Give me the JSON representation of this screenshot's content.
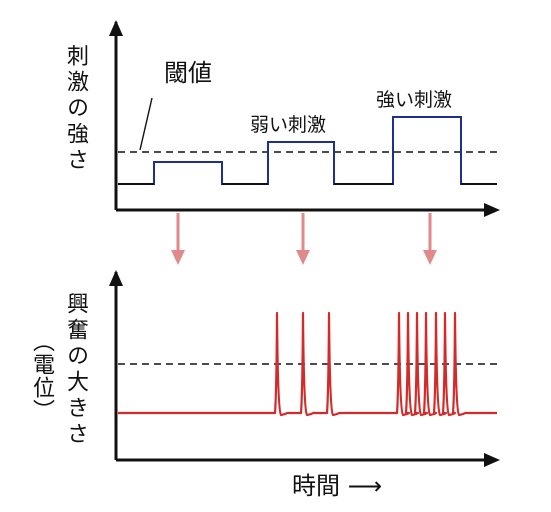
{
  "top_panel": {
    "ylabel": "刺激の強さ",
    "threshold_label": "閾値",
    "weak_label": "弱い刺激",
    "strong_label": "強い刺激"
  },
  "bottom_panel": {
    "ylabel_main": "興奮の大きさ",
    "ylabel_sub": "（電位）",
    "xlabel": "時間 ⟶"
  },
  "colors": {
    "stimulus": "#1f2f8f",
    "response": "#d42a2a",
    "arrow": "#e08a8a",
    "axis": "#111111"
  },
  "stimuli": [
    {
      "name": "below-threshold",
      "level": "below",
      "spikes": 0
    },
    {
      "name": "weak",
      "level": "weak",
      "spikes": 3
    },
    {
      "name": "strong",
      "level": "strong",
      "spikes": 7
    }
  ]
}
